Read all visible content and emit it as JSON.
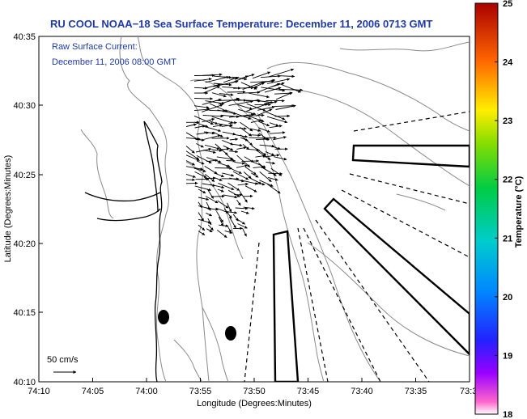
{
  "title": "RU COOL  NOAA−18  Sea Surface Temperature:  December 11, 2006 0713 GMT",
  "annotation": {
    "line1": "Raw Surface Current:",
    "line2": "December 11, 2006 08:00 GMT"
  },
  "axes": {
    "xlabel": "Longitude (Degrees:Minutes)",
    "ylabel": "Latitude (Degrees:Minutes)",
    "x_ticks": [
      "74:10",
      "74:05",
      "74:00",
      "73:55",
      "73:50",
      "73:45",
      "73:40",
      "73:35",
      "73:3"
    ],
    "y_ticks": [
      "40:35",
      "40:30",
      "40:25",
      "40:20",
      "40:15",
      "40:10"
    ]
  },
  "scale": {
    "label": "50 cm/s"
  },
  "colorbar": {
    "label": "Temperature (°C)",
    "ticks": [
      "25",
      "24",
      "23",
      "22",
      "21",
      "20",
      "19",
      "18"
    ],
    "range": [
      18,
      25
    ]
  },
  "colors": {
    "title": "#1f3aa8",
    "annotation": "#1f3aa8",
    "contour": "#8a8a8a",
    "coast": "#000000"
  }
}
